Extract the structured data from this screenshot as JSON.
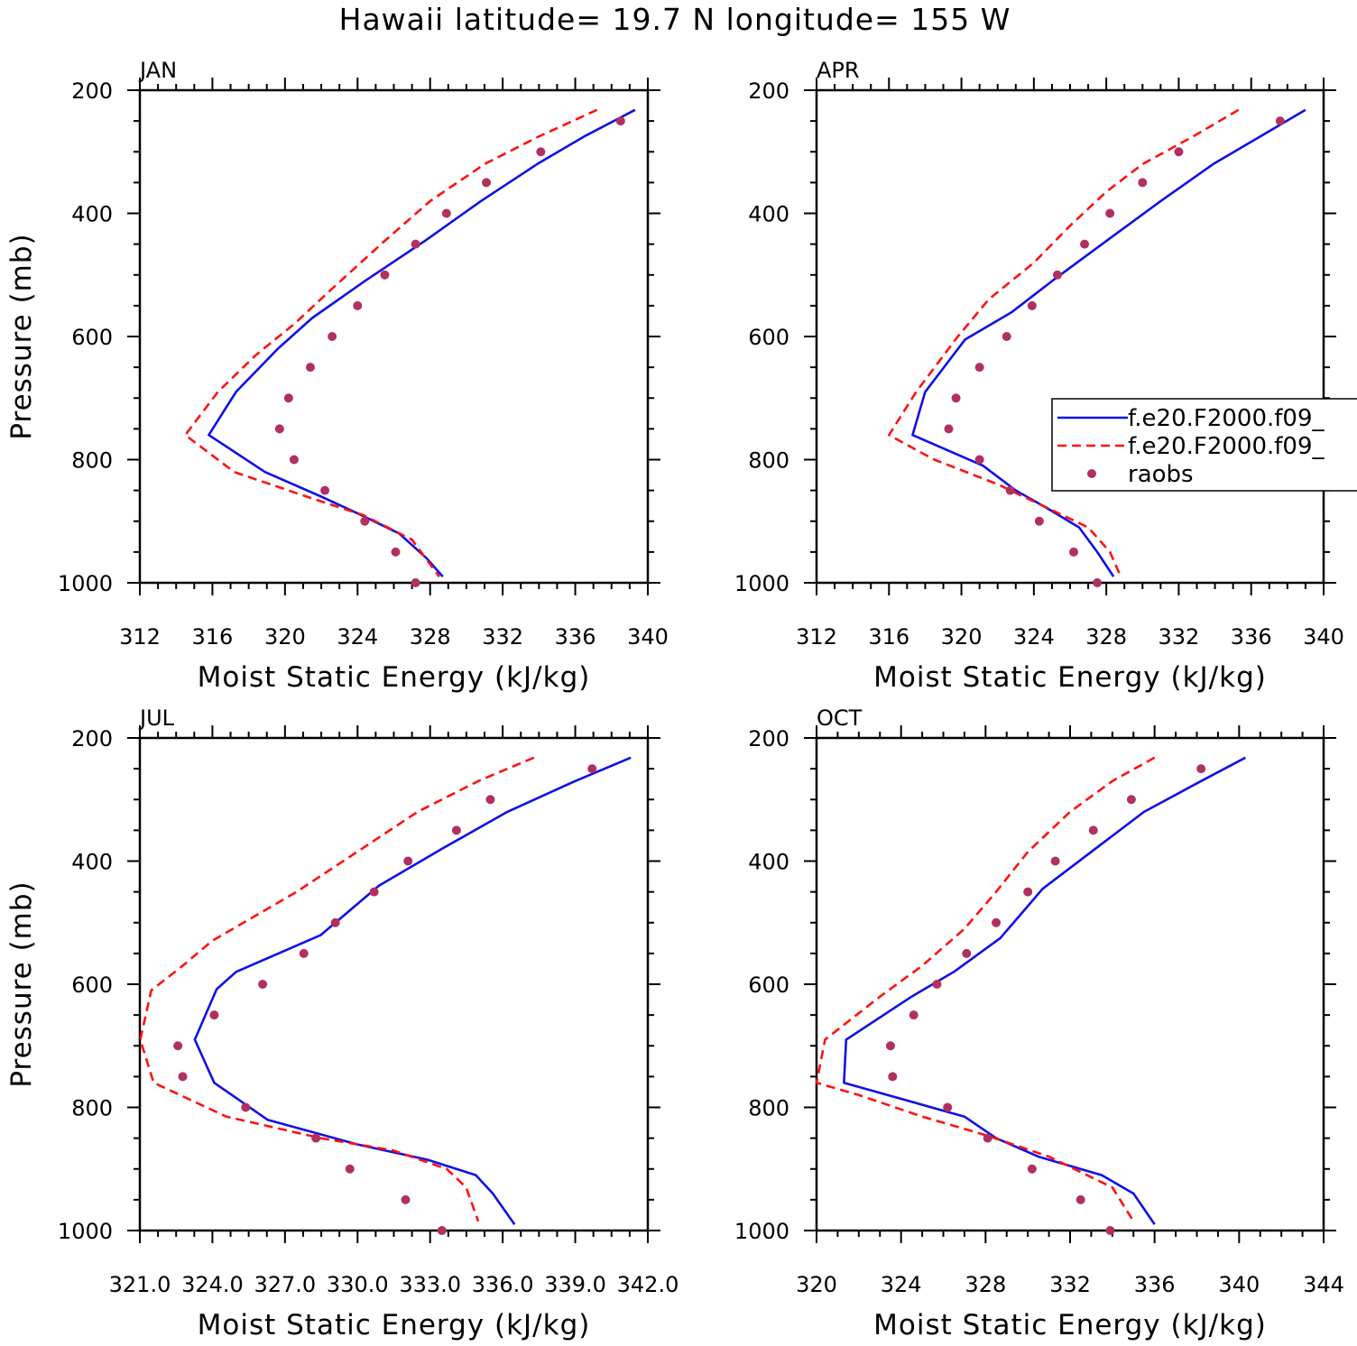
{
  "title": "Hawaii  latitude= 19.7 N longitude= 155 W",
  "colors": {
    "model1": "#1010e8",
    "model2": "#ff1111",
    "raobs": "#b03060",
    "axis": "#000000"
  },
  "legend": {
    "entries": [
      {
        "label": "f.e20.F2000.f09_",
        "style": "solid",
        "color": "#1010e8"
      },
      {
        "label": "f.e20.F2000.f09_",
        "style": "dashed",
        "color": "#ff1111"
      },
      {
        "label": "raobs",
        "style": "marker",
        "color": "#b03060"
      }
    ]
  },
  "chart_data": [
    {
      "type": "line",
      "panel": "JAN",
      "title": "JAN",
      "xlabel": "Moist Static Energy (kJ/kg)",
      "ylabel": "Pressure (mb)",
      "xlim": [
        312,
        340
      ],
      "ylim": [
        1000,
        200
      ],
      "xticks": [
        "312",
        "316",
        "320",
        "324",
        "328",
        "332",
        "336",
        "340"
      ],
      "yticks": [
        "200",
        "400",
        "600",
        "800",
        "1000"
      ],
      "series": [
        {
          "name": "f.e20.F2000.f09_",
          "style": "solid",
          "x": [
            339.3,
            336.5,
            333.9,
            330.8,
            327.7,
            324.4,
            321.5,
            319.6,
            317.3,
            315.8,
            318.9,
            322.0,
            324.2,
            326.3,
            327.8,
            328.7
          ],
          "y": [
            232,
            275,
            320,
            380,
            445,
            510,
            570,
            620,
            690,
            760,
            820,
            860,
            890,
            920,
            960,
            990
          ]
        },
        {
          "name": "f.e20.F2000.f09_",
          "style": "dashed",
          "x": [
            337.2,
            334.0,
            331.0,
            328.0,
            325.3,
            322.5,
            320.5,
            318.4,
            316.3,
            314.5,
            317.2,
            321.2,
            324.3,
            327.0,
            328.0,
            328.5
          ],
          "y": [
            232,
            275,
            320,
            380,
            450,
            525,
            580,
            630,
            690,
            760,
            820,
            860,
            890,
            930,
            970,
            990
          ]
        },
        {
          "name": "raobs",
          "style": "marker",
          "x": [
            338.5,
            334.1,
            331.1,
            328.9,
            327.2,
            325.5,
            324.0,
            322.6,
            321.4,
            320.2,
            319.7,
            320.5,
            322.2,
            324.4,
            326.1,
            327.2
          ],
          "y": [
            250,
            300,
            350,
            400,
            450,
            500,
            550,
            600,
            650,
            700,
            750,
            800,
            850,
            900,
            950,
            1000
          ]
        }
      ]
    },
    {
      "type": "line",
      "panel": "APR",
      "title": "APR",
      "xlabel": "Moist Static Energy (kJ/kg)",
      "ylabel": "",
      "xlim": [
        312,
        340
      ],
      "ylim": [
        1000,
        200
      ],
      "xticks": [
        "312",
        "316",
        "320",
        "324",
        "328",
        "332",
        "336",
        "340"
      ],
      "yticks": [
        "200",
        "400",
        "600",
        "800",
        "1000"
      ],
      "series": [
        {
          "name": "f.e20.F2000.f09_",
          "style": "solid",
          "x": [
            339.0,
            336.5,
            333.9,
            331.0,
            328.0,
            325.0,
            322.8,
            320.2,
            318.0,
            317.3,
            321.2,
            323.0,
            324.8,
            326.5,
            327.5,
            328.4
          ],
          "y": [
            232,
            275,
            320,
            380,
            445,
            510,
            560,
            605,
            690,
            760,
            810,
            850,
            880,
            910,
            950,
            990
          ]
        },
        {
          "name": "f.e20.F2000.f09_",
          "style": "dashed",
          "x": [
            335.3,
            332.8,
            330.0,
            328.0,
            326.0,
            324.0,
            321.5,
            319.8,
            317.5,
            316.0,
            318.5,
            322.0,
            324.5,
            327.0,
            328.2,
            328.8
          ],
          "y": [
            232,
            275,
            320,
            365,
            420,
            480,
            540,
            600,
            690,
            760,
            800,
            840,
            875,
            910,
            950,
            990
          ]
        },
        {
          "name": "raobs",
          "style": "marker",
          "x": [
            337.6,
            332.0,
            330.0,
            328.2,
            326.8,
            325.3,
            323.9,
            322.5,
            321.0,
            319.7,
            319.3,
            321.0,
            322.7,
            324.3,
            326.2,
            327.5
          ],
          "y": [
            250,
            300,
            350,
            400,
            450,
            500,
            550,
            600,
            650,
            700,
            750,
            800,
            850,
            900,
            950,
            1000
          ]
        }
      ]
    },
    {
      "type": "line",
      "panel": "JUL",
      "title": "JUL",
      "xlabel": "Moist Static Energy (kJ/kg)",
      "ylabel": "Pressure (mb)",
      "xlim": [
        321.03,
        342.0
      ],
      "ylim": [
        1000,
        200
      ],
      "xticks": [
        "321.0",
        "324.0",
        "327.0",
        "330.0",
        "333.0",
        "336.0",
        "339.0",
        "342.0"
      ],
      "yticks": [
        "200",
        "400",
        "600",
        "800",
        "1000"
      ],
      "series": [
        {
          "name": "f.e20.F2000.f09_",
          "style": "solid",
          "x": [
            341.3,
            339.0,
            336.2,
            333.5,
            330.9,
            328.5,
            325.0,
            324.2,
            323.3,
            324.1,
            326.3,
            330.0,
            332.9,
            334.9,
            335.6,
            336.5
          ],
          "y": [
            232,
            270,
            320,
            380,
            440,
            520,
            580,
            608,
            690,
            760,
            820,
            860,
            885,
            910,
            940,
            990
          ]
        },
        {
          "name": "f.e20.F2000.f09_",
          "style": "dashed",
          "x": [
            337.3,
            335.0,
            332.5,
            330.0,
            327.5,
            324.0,
            322.8,
            321.5,
            321.05,
            321.6,
            324.6,
            328.5,
            331.5,
            333.7,
            334.5,
            335.0
          ],
          "y": [
            232,
            270,
            320,
            385,
            450,
            530,
            570,
            610,
            690,
            760,
            815,
            850,
            870,
            900,
            930,
            985
          ]
        },
        {
          "name": "raobs",
          "style": "marker",
          "x": [
            339.7,
            335.5,
            334.1,
            332.1,
            330.7,
            329.1,
            327.8,
            326.1,
            324.1,
            322.6,
            322.8,
            325.4,
            328.3,
            329.7,
            332.0,
            333.5
          ],
          "y": [
            250,
            300,
            350,
            400,
            450,
            500,
            550,
            600,
            650,
            700,
            750,
            800,
            850,
            900,
            950,
            1000
          ]
        }
      ]
    },
    {
      "type": "line",
      "panel": "OCT",
      "title": "OCT",
      "xlabel": "Moist Static Energy (kJ/kg)",
      "ylabel": "",
      "xlim": [
        320,
        344
      ],
      "ylim": [
        1000,
        200
      ],
      "xticks": [
        "320",
        "324",
        "328",
        "332",
        "336",
        "340",
        "344"
      ],
      "yticks": [
        "200",
        "400",
        "600",
        "800",
        "1000"
      ],
      "series": [
        {
          "name": "f.e20.F2000.f09_",
          "style": "solid",
          "x": [
            340.3,
            338.2,
            335.5,
            333.0,
            330.7,
            328.7,
            326.5,
            324.5,
            321.4,
            321.3,
            327.0,
            328.5,
            330.5,
            333.5,
            335.0,
            336.0
          ],
          "y": [
            232,
            270,
            320,
            385,
            445,
            525,
            580,
            620,
            690,
            760,
            815,
            850,
            880,
            910,
            940,
            990
          ]
        },
        {
          "name": "f.e20.F2000.f09_",
          "style": "dashed",
          "x": [
            336.0,
            334.0,
            332.0,
            330.0,
            328.5,
            327.0,
            325.0,
            323.0,
            320.4,
            320.0,
            322.0,
            325.0,
            328.0,
            331.0,
            334.0,
            335.0
          ],
          "y": [
            232,
            270,
            320,
            385,
            450,
            510,
            570,
            620,
            690,
            760,
            780,
            815,
            845,
            880,
            930,
            985
          ]
        },
        {
          "name": "raobs",
          "style": "marker",
          "x": [
            338.2,
            334.9,
            333.1,
            331.3,
            330.0,
            328.5,
            327.1,
            325.7,
            324.6,
            323.5,
            323.6,
            326.2,
            328.1,
            330.2,
            332.5,
            333.9
          ],
          "y": [
            250,
            300,
            350,
            400,
            450,
            500,
            550,
            600,
            650,
            700,
            750,
            800,
            850,
            900,
            950,
            1000
          ]
        }
      ]
    }
  ]
}
